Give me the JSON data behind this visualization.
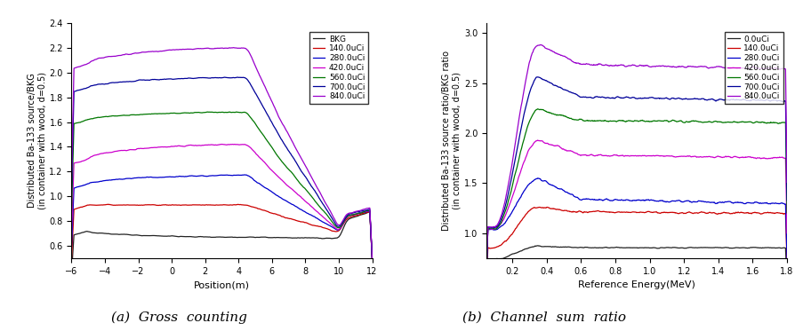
{
  "plot_a": {
    "xlabel": "Position(m)",
    "ylabel": "Distributed Ba-133 source/BKG\n(in container with wood, d=0.5)",
    "xlim": [
      -6,
      12
    ],
    "ylim": [
      0.5,
      2.4
    ],
    "yticks": [
      0.6,
      0.8,
      1.0,
      1.2,
      1.4,
      1.6,
      1.8,
      2.0,
      2.2,
      2.4
    ],
    "xticks": [
      -6,
      -4,
      -2,
      0,
      2,
      4,
      6,
      8,
      10,
      12
    ],
    "legend_labels": [
      "BKG",
      "140.0uCi",
      "280.0uCi",
      "420.0uCi",
      "560.0uCi",
      "700.0uCi",
      "840.0uCi"
    ],
    "colors": [
      "#222222",
      "#cc0000",
      "#0000cc",
      "#cc00cc",
      "#007700",
      "#000099",
      "#9900cc"
    ],
    "caption": "(a)  Gross  counting",
    "base_levels": [
      0.68,
      0.92,
      1.12,
      1.3,
      1.62,
      1.88,
      2.07
    ],
    "peak_levels": [
      0.68,
      0.93,
      1.17,
      1.42,
      1.68,
      1.95,
      2.18
    ],
    "drop_levels": [
      0.7,
      0.71,
      0.71,
      0.71,
      0.72,
      0.73,
      0.74
    ],
    "end_levels": [
      0.88,
      0.88,
      0.89,
      0.89,
      0.89,
      0.9,
      0.9
    ]
  },
  "plot_b": {
    "xlabel": "Reference Energy(MeV)",
    "ylabel": "Distributed Ba-133 source ratio/BKG ratio\n(in container with wood, d=0.5)",
    "xlim": [
      0.05,
      1.8
    ],
    "ylim": [
      0.75,
      3.1
    ],
    "yticks": [
      1.0,
      1.5,
      2.0,
      2.5,
      3.0
    ],
    "xticks": [
      0.2,
      0.4,
      0.6,
      0.8,
      1.0,
      1.2,
      1.4,
      1.6,
      1.8
    ],
    "legend_labels": [
      "0.0uCi",
      "140.0uCi",
      "280.0uCi",
      "420.0uCi",
      "560.0uCi",
      "700.0uCi",
      "840.0uCi"
    ],
    "colors": [
      "#222222",
      "#cc0000",
      "#0000cc",
      "#cc00cc",
      "#007700",
      "#000099",
      "#9900cc"
    ],
    "caption": "(b)  Channel  sum  ratio",
    "start_levels": [
      0.87,
      1.01,
      1.22,
      1.23,
      1.23,
      1.24,
      1.25
    ],
    "peak_levels": [
      0.87,
      1.26,
      1.55,
      1.93,
      2.24,
      2.56,
      2.89
    ],
    "flat_levels": [
      0.85,
      1.19,
      1.26,
      1.73,
      2.08,
      2.3,
      2.6
    ],
    "end_levels": [
      0.85,
      1.19,
      1.25,
      1.7,
      2.08,
      2.25,
      2.62
    ]
  }
}
